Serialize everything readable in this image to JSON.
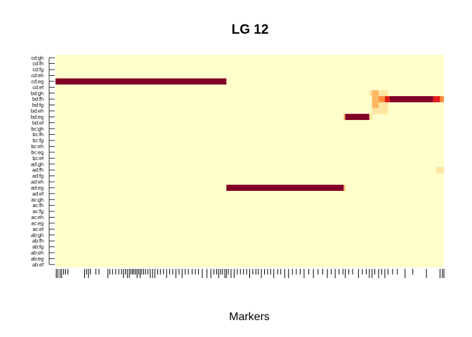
{
  "chart_data": {
    "type": "heatmap",
    "title": "LG 12",
    "xlabel": "Markers",
    "ylabel": "",
    "row_labels": [
      "cd:gh",
      "cd:fh",
      "cd:fg",
      "cd:eh",
      "cd:eg",
      "cd:ef",
      "bd:gh",
      "bd:fh",
      "bd:fg",
      "bd:eh",
      "bd:eg",
      "bd:ef",
      "bc:gh",
      "bc:fh",
      "bc:fg",
      "bc:eh",
      "bc:eg",
      "bc:ef",
      "ad:gh",
      "ad:fh",
      "ad:fg",
      "ad:eh",
      "ad:eg",
      "ad:ef",
      "ac:gh",
      "ac:fh",
      "ac:fg",
      "ac:eh",
      "ac:eg",
      "ac:ef",
      "ab:gh",
      "ab:fh",
      "ab:fg",
      "ab:eh",
      "ab:eg",
      "ab:ef"
    ],
    "x_range": [
      0,
      1
    ],
    "background_value": 0,
    "value_range": [
      0,
      1
    ],
    "colors": {
      "low": "#FFFFCC",
      "mid_low": "#FEE5A0",
      "mid": "#FDB863",
      "mid_high": "#FD8D3C",
      "high_red": "#E31A1C",
      "max": "#800026"
    },
    "cells": [
      {
        "row": "cd:eg",
        "x_start": 0.0,
        "x_end": 0.44,
        "value": 1.0
      },
      {
        "row": "ad:eg",
        "x_start": 0.44,
        "x_end": 0.742,
        "value": 1.0
      },
      {
        "row": "ad:eg",
        "x_start": 0.742,
        "x_end": 0.746,
        "value": 0.5
      },
      {
        "row": "bd:eg",
        "x_start": 0.742,
        "x_end": 0.746,
        "value": 0.5
      },
      {
        "row": "bd:eg",
        "x_start": 0.746,
        "x_end": 0.808,
        "value": 1.0
      },
      {
        "row": "bd:eg",
        "x_start": 0.808,
        "x_end": 0.815,
        "value": 0.25
      },
      {
        "row": "bd:eh",
        "x_start": 0.815,
        "x_end": 0.838,
        "value": 0.25
      },
      {
        "row": "bd:eh",
        "x_start": 0.838,
        "x_end": 0.856,
        "value": 0.15
      },
      {
        "row": "bd:gh",
        "x_start": 0.808,
        "x_end": 0.815,
        "value": 0.15
      },
      {
        "row": "bd:gh",
        "x_start": 0.815,
        "x_end": 0.832,
        "value": 0.45
      },
      {
        "row": "bd:gh",
        "x_start": 0.832,
        "x_end": 0.856,
        "value": 0.15
      },
      {
        "row": "bd:fg",
        "x_start": 0.815,
        "x_end": 0.832,
        "value": 0.45
      },
      {
        "row": "bd:fg",
        "x_start": 0.832,
        "x_end": 0.856,
        "value": 0.15
      },
      {
        "row": "bd:fh",
        "x_start": 0.815,
        "x_end": 0.832,
        "value": 0.55
      },
      {
        "row": "bd:fh",
        "x_start": 0.832,
        "x_end": 0.848,
        "value": 0.75
      },
      {
        "row": "bd:fh",
        "x_start": 0.848,
        "x_end": 0.86,
        "value": 0.85
      },
      {
        "row": "bd:fh",
        "x_start": 0.86,
        "x_end": 0.972,
        "value": 1.0
      },
      {
        "row": "bd:fh",
        "x_start": 0.972,
        "x_end": 0.99,
        "value": 0.85
      },
      {
        "row": "bd:fh",
        "x_start": 0.99,
        "x_end": 1.0,
        "value": 0.75
      },
      {
        "row": "ad:fh",
        "x_start": 0.98,
        "x_end": 1.0,
        "value": 0.15
      }
    ],
    "marker_positions": [
      0.002,
      0.006,
      0.012,
      0.016,
      0.021,
      0.026,
      0.032,
      0.075,
      0.08,
      0.085,
      0.09,
      0.104,
      0.112,
      0.135,
      0.14,
      0.147,
      0.155,
      0.163,
      0.17,
      0.175,
      0.18,
      0.185,
      0.19,
      0.194,
      0.198,
      0.202,
      0.206,
      0.21,
      0.214,
      0.218,
      0.222,
      0.227,
      0.232,
      0.238,
      0.244,
      0.25,
      0.256,
      0.263,
      0.27,
      0.278,
      0.286,
      0.294,
      0.302,
      0.31,
      0.318,
      0.326,
      0.334,
      0.342,
      0.352,
      0.36,
      0.368,
      0.378,
      0.39,
      0.4,
      0.408,
      0.415,
      0.42,
      0.425,
      0.43,
      0.436,
      0.44,
      0.445,
      0.452,
      0.46,
      0.468,
      0.476,
      0.484,
      0.492,
      0.5,
      0.508,
      0.516,
      0.522,
      0.53,
      0.538,
      0.546,
      0.554,
      0.562,
      0.572,
      0.58,
      0.59,
      0.6,
      0.61,
      0.62,
      0.63,
      0.64,
      0.652,
      0.664,
      0.676,
      0.688,
      0.7,
      0.71,
      0.72,
      0.73,
      0.74,
      0.746,
      0.755,
      0.765,
      0.78,
      0.79,
      0.8,
      0.808,
      0.815,
      0.822,
      0.832,
      0.84,
      0.848,
      0.856,
      0.868,
      0.88,
      0.9,
      0.92,
      0.955,
      0.99,
      0.996,
      1.0
    ],
    "marker_tall": [
      0.002,
      0.006,
      0.012,
      0.016,
      0.075,
      0.085,
      0.135,
      0.175,
      0.185,
      0.19,
      0.21,
      0.218,
      0.244,
      0.25,
      0.256,
      0.286,
      0.31,
      0.326,
      0.378,
      0.39,
      0.4,
      0.42,
      0.436,
      0.44,
      0.452,
      0.46,
      0.47,
      0.5,
      0.53,
      0.562,
      0.59,
      0.6,
      0.64,
      0.664,
      0.7,
      0.72,
      0.746,
      0.78,
      0.808,
      0.815,
      0.832,
      0.848,
      0.9,
      0.955,
      0.99,
      0.996,
      1.0
    ]
  }
}
